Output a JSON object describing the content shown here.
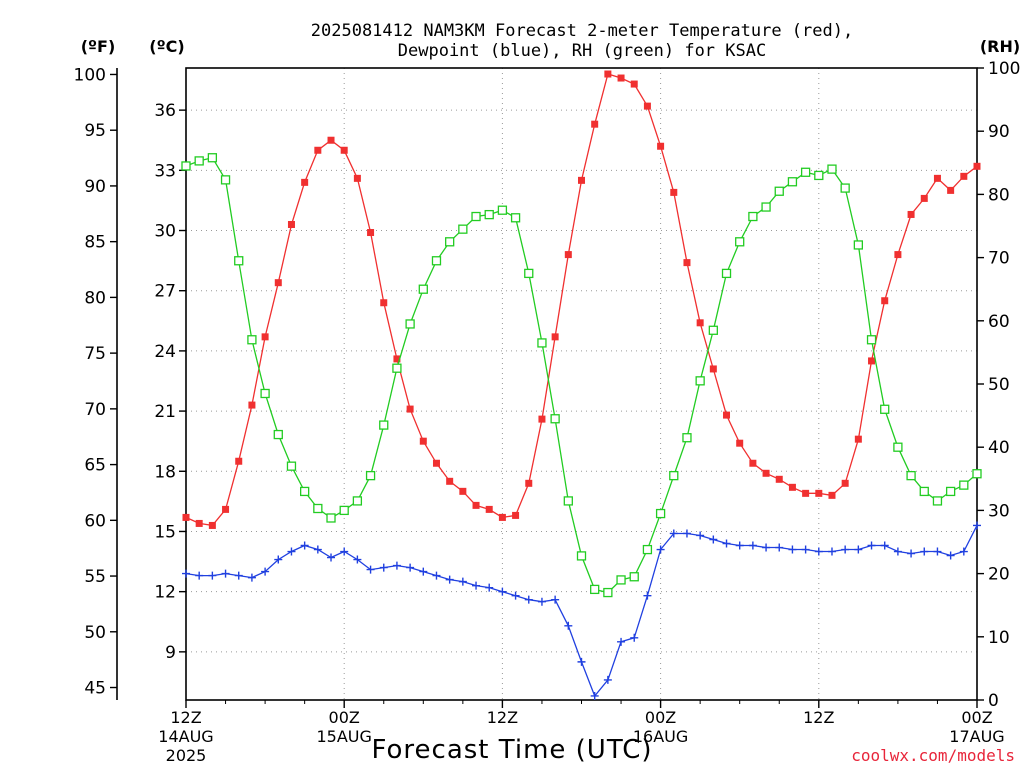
{
  "chart_data": {
    "type": "line",
    "title_line1": "2025081412 NAM3KM Forecast 2-meter Temperature (red),",
    "title_line2": "Dewpoint (blue), RH (green) for KSAC",
    "xlabel": "Forecast Time (UTC)",
    "credit": "coolwx.com/models",
    "units": {
      "fahrenheit": "(ºF)",
      "celsius": "(ºC)",
      "rh": "(RH)"
    },
    "x_hours_start": 0,
    "x_hours_end": 60,
    "xlim": [
      0,
      60
    ],
    "celsius_lim": [
      6.6,
      38.1
    ],
    "rh_lim": [
      0,
      100
    ],
    "fahrenheit_ticks": [
      "100",
      "95",
      "90",
      "85",
      "80",
      "75",
      "70",
      "65",
      "60",
      "55",
      "50",
      "45"
    ],
    "celsius_ticks": [
      "36",
      "33",
      "30",
      "27",
      "24",
      "21",
      "18",
      "15",
      "12",
      "9"
    ],
    "rh_ticks": [
      "100",
      "90",
      "80",
      "70",
      "60",
      "50",
      "40",
      "30",
      "20",
      "10",
      "0"
    ],
    "x_ticks": [
      {
        "hour": 0,
        "label1": "12Z",
        "label2": "14AUG",
        "label3": "2025"
      },
      {
        "hour": 12,
        "label1": "00Z",
        "label2": "15AUG",
        "label3": ""
      },
      {
        "hour": 24,
        "label1": "12Z",
        "label2": "",
        "label3": ""
      },
      {
        "hour": 36,
        "label1": "00Z",
        "label2": "16AUG",
        "label3": ""
      },
      {
        "hour": 48,
        "label1": "12Z",
        "label2": "",
        "label3": ""
      },
      {
        "hour": 60,
        "label1": "00Z",
        "label2": "17AUG",
        "label3": ""
      }
    ],
    "hours": [
      0,
      1,
      2,
      3,
      4,
      5,
      6,
      7,
      8,
      9,
      10,
      11,
      12,
      13,
      14,
      15,
      16,
      17,
      18,
      19,
      20,
      21,
      22,
      23,
      24,
      25,
      26,
      27,
      28,
      29,
      30,
      31,
      32,
      33,
      34,
      35,
      36,
      37,
      38,
      39,
      40,
      41,
      42,
      43,
      44,
      45,
      46,
      47,
      48,
      49,
      50,
      51,
      52,
      53,
      54,
      55,
      56,
      57,
      58,
      59,
      60
    ],
    "series": [
      {
        "name": "Temperature",
        "color": "#f03030",
        "unit": "C",
        "marker": "filled-square",
        "values": [
          15.7,
          15.4,
          15.3,
          16.1,
          18.5,
          21.3,
          24.7,
          27.4,
          30.3,
          32.4,
          34.0,
          34.5,
          34.0,
          32.6,
          29.9,
          26.4,
          23.6,
          21.1,
          19.5,
          18.4,
          17.5,
          17.0,
          16.3,
          16.1,
          15.7,
          15.8,
          17.4,
          20.6,
          24.7,
          28.8,
          32.5,
          35.3,
          37.8,
          37.6,
          37.3,
          36.2,
          34.2,
          31.9,
          28.4,
          25.4,
          23.1,
          20.8,
          19.4,
          18.4,
          17.9,
          17.6,
          17.2,
          16.9,
          16.9,
          16.8,
          17.4,
          19.6,
          23.5,
          26.5,
          28.8,
          30.8,
          31.6,
          32.6,
          32.0,
          32.7,
          33.2
        ]
      },
      {
        "name": "Dewpoint",
        "color": "#2040e0",
        "unit": "C",
        "marker": "plus",
        "values": [
          12.9,
          12.8,
          12.8,
          12.9,
          12.8,
          12.7,
          13.0,
          13.6,
          14.0,
          14.3,
          14.1,
          13.7,
          14.0,
          13.6,
          13.1,
          13.2,
          13.3,
          13.2,
          13.0,
          12.8,
          12.6,
          12.5,
          12.3,
          12.2,
          12.0,
          11.8,
          11.6,
          11.5,
          11.6,
          10.3,
          8.5,
          6.8,
          7.6,
          9.5,
          9.7,
          11.8,
          14.1,
          14.9,
          14.9,
          14.8,
          14.6,
          14.4,
          14.3,
          14.3,
          14.2,
          14.2,
          14.1,
          14.1,
          14.0,
          14.0,
          14.1,
          14.1,
          14.3,
          14.3,
          14.0,
          13.9,
          14.0,
          14.0,
          13.8,
          14.0,
          15.3
        ]
      },
      {
        "name": "RH",
        "color": "#22cc22",
        "unit": "%",
        "marker": "open-square",
        "values": [
          84.5,
          85.3,
          85.8,
          82.3,
          69.5,
          57.0,
          48.5,
          42.0,
          37.0,
          33.0,
          30.3,
          28.8,
          30.0,
          31.5,
          35.5,
          43.5,
          52.5,
          59.5,
          65.0,
          69.5,
          72.5,
          74.5,
          76.5,
          76.8,
          77.5,
          76.3,
          67.5,
          56.5,
          44.5,
          31.5,
          22.8,
          17.5,
          17.0,
          19.0,
          19.5,
          23.8,
          29.5,
          35.5,
          41.5,
          50.5,
          58.5,
          67.5,
          72.5,
          76.5,
          78.0,
          80.5,
          82.0,
          83.5,
          83.0,
          84.0,
          81.0,
          72.0,
          57.0,
          46.0,
          40.0,
          35.5,
          33.0,
          31.5,
          33.0,
          34.0,
          35.8
        ]
      }
    ]
  }
}
